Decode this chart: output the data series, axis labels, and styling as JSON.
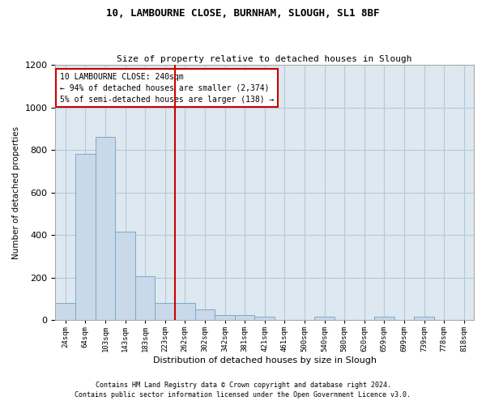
{
  "title1": "10, LAMBOURNE CLOSE, BURNHAM, SLOUGH, SL1 8BF",
  "title2": "Size of property relative to detached houses in Slough",
  "xlabel": "Distribution of detached houses by size in Slough",
  "ylabel": "Number of detached properties",
  "categories": [
    "24sqm",
    "64sqm",
    "103sqm",
    "143sqm",
    "183sqm",
    "223sqm",
    "262sqm",
    "302sqm",
    "342sqm",
    "381sqm",
    "421sqm",
    "461sqm",
    "500sqm",
    "540sqm",
    "580sqm",
    "620sqm",
    "659sqm",
    "699sqm",
    "739sqm",
    "778sqm",
    "818sqm"
  ],
  "values": [
    80,
    780,
    860,
    415,
    205,
    80,
    80,
    50,
    25,
    25,
    15,
    0,
    0,
    15,
    0,
    0,
    15,
    0,
    15,
    0,
    0
  ],
  "bar_color": "#c9d9ea",
  "bar_edge_color": "#7aaac8",
  "vline_color": "#cc0000",
  "vline_x": 5.5,
  "annotation_line1": "10 LAMBOURNE CLOSE: 240sqm",
  "annotation_line2": "← 94% of detached houses are smaller (2,374)",
  "annotation_line3": "5% of semi-detached houses are larger (138) →",
  "annotation_box_color": "#ffffff",
  "annotation_box_edge": "#cc0000",
  "ylim": [
    0,
    1200
  ],
  "yticks": [
    0,
    200,
    400,
    600,
    800,
    1000,
    1200
  ],
  "footnote1": "Contains HM Land Registry data © Crown copyright and database right 2024.",
  "footnote2": "Contains public sector information licensed under the Open Government Licence v3.0.",
  "bg_color": "#ffffff",
  "plot_bg_color": "#dde8f0",
  "grid_color": "#b8c8d8"
}
